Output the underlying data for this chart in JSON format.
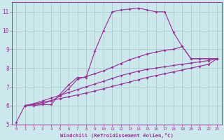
{
  "background_color": "#cce8ec",
  "grid_color": "#aacccc",
  "line_color": "#993399",
  "xlabel": "Windchill (Refroidissement éolien,°C)",
  "ylim": [
    5,
    11.5
  ],
  "xlim": [
    -0.5,
    23.5
  ],
  "yticks": [
    5,
    6,
    7,
    8,
    9,
    10,
    11
  ],
  "xticks": [
    0,
    1,
    2,
    3,
    4,
    5,
    6,
    7,
    8,
    9,
    10,
    11,
    12,
    13,
    14,
    15,
    16,
    17,
    18,
    19,
    20,
    21,
    22,
    23
  ],
  "series": [
    {
      "x": [
        0,
        1,
        2,
        3,
        4,
        5,
        6,
        7,
        8,
        9,
        10,
        11,
        12,
        13,
        14,
        15,
        16,
        17,
        18,
        19,
        20,
        21,
        22,
        23
      ],
      "y": [
        5.1,
        6.0,
        6.0,
        6.05,
        6.05,
        6.6,
        7.1,
        7.5,
        7.5,
        8.9,
        10.0,
        11.0,
        11.1,
        11.15,
        11.2,
        11.1,
        11.0,
        11.0,
        9.9,
        9.15,
        8.5,
        8.5,
        8.5,
        8.5
      ]
    },
    {
      "x": [
        1,
        2,
        3,
        4,
        5,
        6,
        7,
        8,
        9,
        10,
        11,
        12,
        13,
        14,
        15,
        16,
        17,
        18,
        19,
        20,
        21,
        22,
        23
      ],
      "y": [
        6.0,
        6.05,
        6.1,
        6.25,
        6.5,
        6.9,
        7.4,
        7.55,
        7.7,
        7.85,
        8.05,
        8.25,
        8.45,
        8.6,
        8.75,
        8.85,
        8.95,
        9.0,
        9.15,
        8.5,
        8.5,
        8.5,
        8.5
      ]
    },
    {
      "x": [
        1,
        2,
        3,
        4,
        5,
        6,
        7,
        8,
        9,
        10,
        11,
        12,
        13,
        14,
        15,
        16,
        17,
        18,
        19,
        20,
        21,
        22,
        23
      ],
      "y": [
        6.0,
        6.1,
        6.25,
        6.4,
        6.55,
        6.7,
        6.85,
        7.0,
        7.15,
        7.3,
        7.45,
        7.6,
        7.72,
        7.84,
        7.93,
        8.0,
        8.07,
        8.14,
        8.2,
        8.27,
        8.33,
        8.4,
        8.5
      ]
    },
    {
      "x": [
        1,
        2,
        3,
        4,
        5,
        6,
        7,
        8,
        9,
        10,
        11,
        12,
        13,
        14,
        15,
        16,
        17,
        18,
        19,
        20,
        21,
        22,
        23
      ],
      "y": [
        6.0,
        6.08,
        6.17,
        6.27,
        6.37,
        6.47,
        6.57,
        6.67,
        6.78,
        6.9,
        7.02,
        7.14,
        7.26,
        7.38,
        7.5,
        7.6,
        7.7,
        7.8,
        7.9,
        8.0,
        8.1,
        8.2,
        8.5
      ]
    }
  ]
}
